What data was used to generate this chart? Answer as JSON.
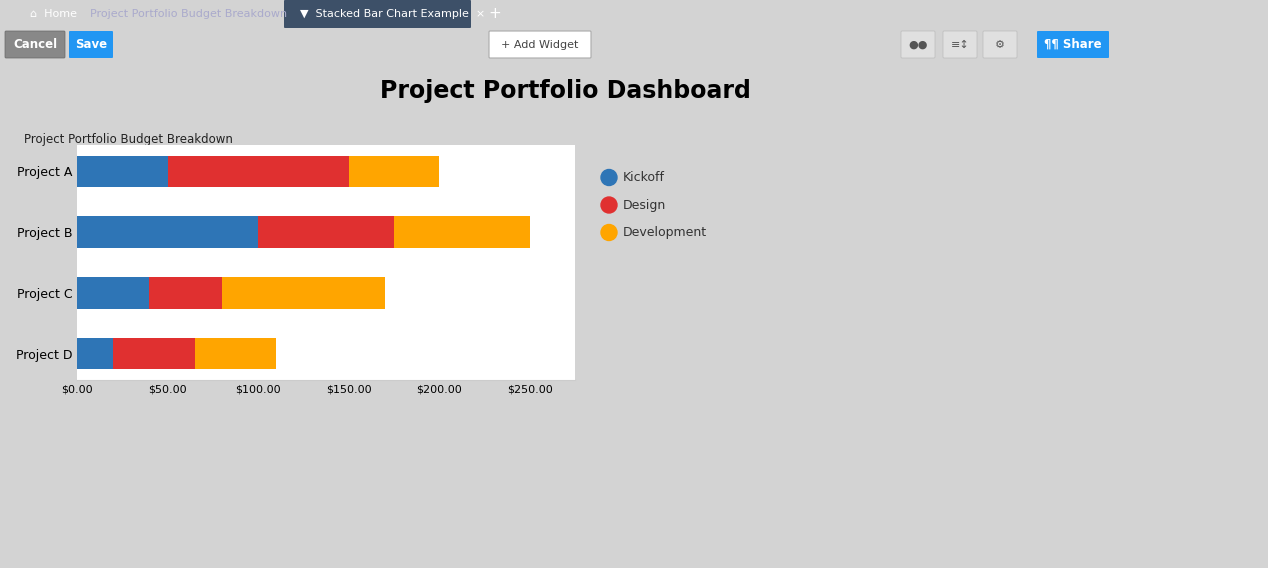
{
  "projects": [
    "Project A",
    "Project B",
    "Project C",
    "Project D"
  ],
  "kickoff": [
    50,
    100,
    40,
    20
  ],
  "design": [
    100,
    75,
    40,
    45
  ],
  "development": [
    50,
    75,
    90,
    45
  ],
  "colors": {
    "kickoff": "#2E75B6",
    "design": "#E03030",
    "development": "#FFA500"
  },
  "chart_title": "Project Portfolio Budget Breakdown",
  "dashboard_title": "Project Portfolio Dashboard",
  "xlim": [
    0,
    275
  ],
  "xtick_values": [
    0,
    50,
    100,
    150,
    200,
    250
  ],
  "bg_outer": "#D3D3D3",
  "bg_chart": "#FFFFFF",
  "bg_header": "#5BA8E0",
  "header_text_color": "#000000",
  "tab_bar_color": "#2B3A52",
  "toolbar_color": "#E8E8E8",
  "tab_active_color": "#3D5068",
  "cancel_btn_color": "#888888",
  "save_btn_color": "#2196F3",
  "share_btn_color": "#2196F3",
  "icon_btn_color": "#E0E0E0"
}
